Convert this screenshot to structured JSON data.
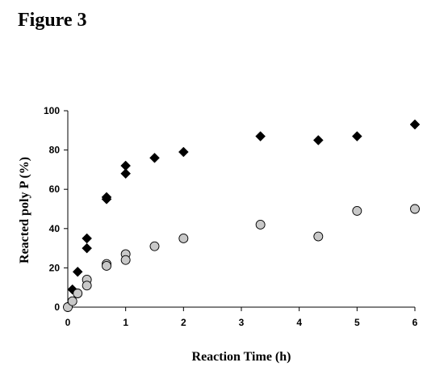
{
  "figure": {
    "title": "Figure 3"
  },
  "chart_data": {
    "type": "scatter",
    "title": "",
    "xlabel": "Reaction Time (h)",
    "ylabel": "Reacted poly P (%)",
    "xlim": [
      0,
      6
    ],
    "ylim": [
      0,
      100
    ],
    "xticks": [
      0,
      1,
      2,
      3,
      4,
      5,
      6
    ],
    "xtick_labels": [
      "0",
      "1",
      "2",
      "3",
      "4",
      "5",
      "6"
    ],
    "yticks": [
      0,
      20,
      40,
      60,
      80,
      100
    ],
    "ytick_labels": [
      "0",
      "20",
      "40",
      "60",
      "80",
      "100"
    ],
    "grid": false,
    "legend": "none",
    "series": [
      {
        "marker": "diamond",
        "color": "#000000",
        "points": [
          [
            0.0,
            0
          ],
          [
            0.08,
            9
          ],
          [
            0.17,
            18
          ],
          [
            0.33,
            35
          ],
          [
            0.33,
            30
          ],
          [
            0.67,
            56
          ],
          [
            0.67,
            55
          ],
          [
            1.0,
            72
          ],
          [
            1.0,
            68
          ],
          [
            1.5,
            76
          ],
          [
            2.0,
            79
          ],
          [
            3.33,
            87
          ],
          [
            4.33,
            85
          ],
          [
            5.0,
            87
          ],
          [
            6.0,
            93
          ]
        ]
      },
      {
        "marker": "circle",
        "color": "#c8c8c8",
        "points": [
          [
            0.0,
            0
          ],
          [
            0.08,
            3
          ],
          [
            0.17,
            7
          ],
          [
            0.33,
            14
          ],
          [
            0.33,
            11
          ],
          [
            0.67,
            22
          ],
          [
            0.67,
            21
          ],
          [
            1.0,
            27
          ],
          [
            1.0,
            24
          ],
          [
            1.5,
            31
          ],
          [
            2.0,
            35
          ],
          [
            3.33,
            42
          ],
          [
            4.33,
            36
          ],
          [
            5.0,
            49
          ],
          [
            6.0,
            50
          ]
        ]
      }
    ]
  }
}
